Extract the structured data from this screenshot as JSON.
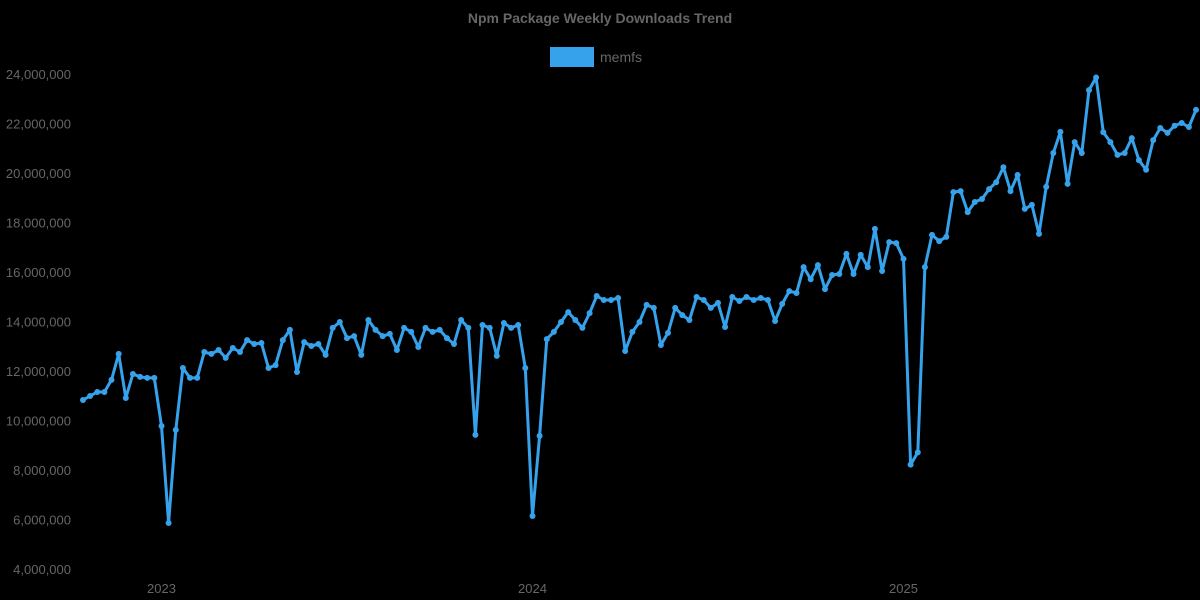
{
  "chart_data": {
    "type": "line",
    "title": "Npm Package Weekly Downloads Trend",
    "xlabel": "",
    "ylabel": "",
    "ylim": [
      4000000,
      24000000
    ],
    "yticks": [
      4000000,
      6000000,
      8000000,
      10000000,
      12000000,
      14000000,
      16000000,
      18000000,
      20000000,
      22000000,
      24000000
    ],
    "ytick_labels": [
      "4,000,000",
      "6,000,000",
      "8,000,000",
      "10,000,000",
      "12,000,000",
      "14,000,000",
      "16,000,000",
      "18,000,000",
      "20,000,000",
      "22,000,000",
      "24,000,000"
    ],
    "xtick_labels": [
      "2023",
      "2024",
      "2025"
    ],
    "xtick_index": [
      11,
      63,
      115
    ],
    "grid": false,
    "legend_position": "top",
    "color": "#36a2eb",
    "series": [
      {
        "name": "memfs",
        "values": [
          10870000,
          11030000,
          11190000,
          11190000,
          11680000,
          12730000,
          10950000,
          11920000,
          11800000,
          11760000,
          11760000,
          9820000,
          5900000,
          9660000,
          12160000,
          11760000,
          11760000,
          12810000,
          12730000,
          12890000,
          12570000,
          12970000,
          12810000,
          13290000,
          13130000,
          13170000,
          12160000,
          12280000,
          13290000,
          13700000,
          12000000,
          13210000,
          13050000,
          13130000,
          12690000,
          13780000,
          14020000,
          13370000,
          13450000,
          12690000,
          14100000,
          13700000,
          13450000,
          13540000,
          12890000,
          13780000,
          13620000,
          13010000,
          13780000,
          13620000,
          13700000,
          13370000,
          13130000,
          14100000,
          13780000,
          9460000,
          13900000,
          13780000,
          12650000,
          13980000,
          13780000,
          13900000,
          12160000,
          6180000,
          9420000,
          13330000,
          13620000,
          14020000,
          14420000,
          14100000,
          13780000,
          14380000,
          15070000,
          14910000,
          14910000,
          14990000,
          12850000,
          13620000,
          14020000,
          14710000,
          14590000,
          13090000,
          13580000,
          14590000,
          14300000,
          14100000,
          15030000,
          14910000,
          14590000,
          14790000,
          13820000,
          15030000,
          14870000,
          15030000,
          14910000,
          14990000,
          14910000,
          14060000,
          14750000,
          15270000,
          15190000,
          16240000,
          15750000,
          16320000,
          15350000,
          15920000,
          15960000,
          16770000,
          15960000,
          16730000,
          16240000,
          17780000,
          16080000,
          17250000,
          17210000,
          16570000,
          8260000,
          8750000,
          16240000,
          17540000,
          17290000,
          17460000,
          19270000,
          19310000,
          18460000,
          18870000,
          18990000,
          19390000,
          19670000,
          20270000,
          19310000,
          19960000,
          18590000,
          18750000,
          17580000,
          19480000,
          20850000,
          21700000,
          19600000,
          21290000,
          20850000,
          23390000,
          23900000,
          21690000,
          21290000,
          20770000,
          20850000,
          21450000,
          20560000,
          20170000,
          21370000,
          21860000,
          21660000,
          21950000,
          22060000,
          21900000,
          22590000
        ]
      }
    ]
  },
  "header": {
    "title": "Npm Package Weekly Downloads Trend"
  },
  "legend": {
    "items": [
      {
        "label": "memfs",
        "color": "#36a2eb"
      }
    ]
  }
}
